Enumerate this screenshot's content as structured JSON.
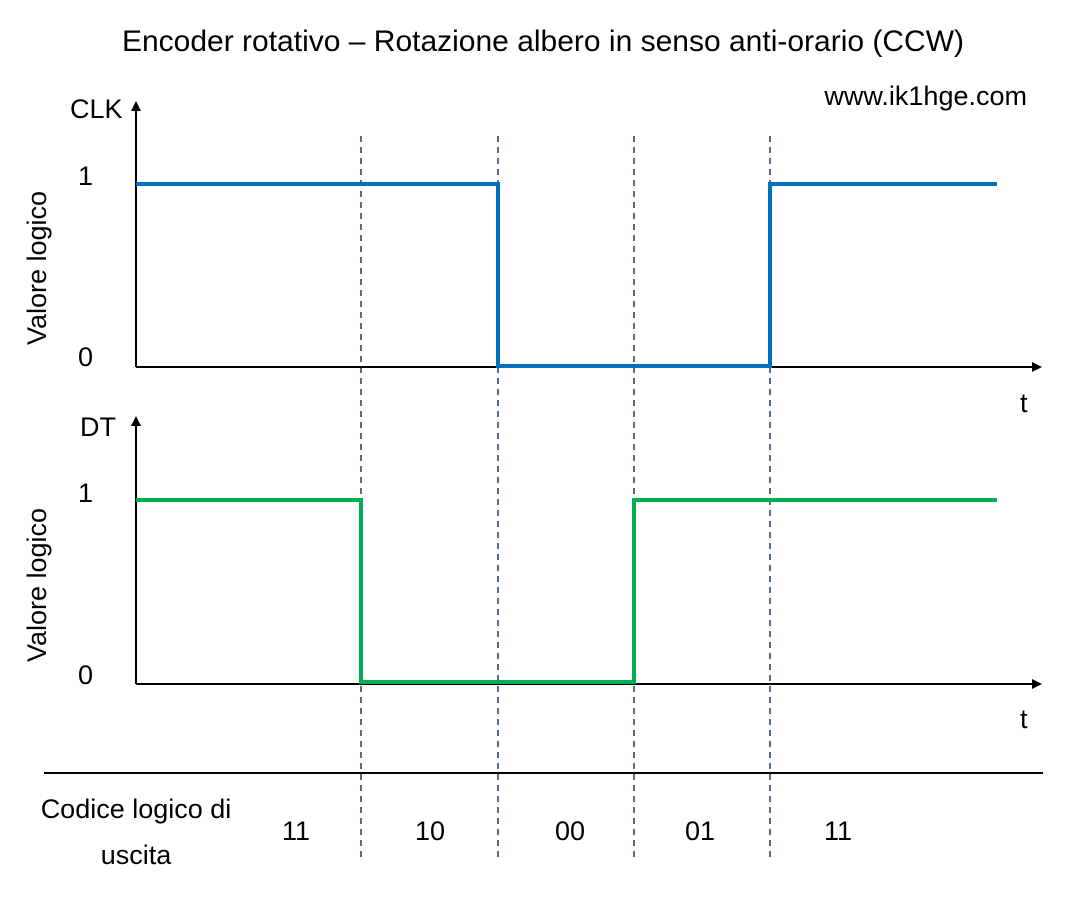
{
  "title": "Encoder rotativo – Rotazione albero in senso anti-orario (CCW)",
  "website": "www.ik1hge.com",
  "colors": {
    "clk_signal": "#0070C0",
    "dt_signal": "#00B050",
    "axis": "#000000",
    "divider": "#1F3864"
  },
  "clk_plot": {
    "signal_name": "CLK",
    "y_axis_label": "Valore logico",
    "tick_high": "1",
    "tick_low": "0",
    "x_axis_label": "t",
    "levels": [
      1,
      1,
      0,
      0,
      1
    ]
  },
  "dt_plot": {
    "signal_name": "DT",
    "y_axis_label": "Valore logico",
    "tick_high": "1",
    "tick_low": "0",
    "x_axis_label": "t",
    "levels": [
      1,
      0,
      0,
      1,
      1
    ]
  },
  "footer": {
    "label_line1": "Codice logico di",
    "label_line2": "uscita",
    "codes": [
      "11",
      "10",
      "00",
      "01",
      "11"
    ]
  }
}
